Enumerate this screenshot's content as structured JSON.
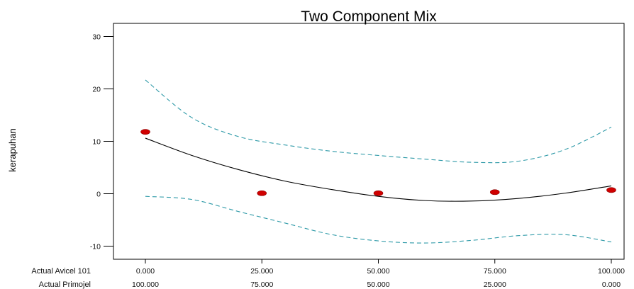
{
  "chart_data": {
    "type": "line",
    "title": "Two Component Mix",
    "ylabel": "kerapuhan",
    "x_axis_labels": {
      "primary": "Actual Avicel 101",
      "secondary": "Actual Primojel"
    },
    "x_ticks": [
      "0.000",
      "25.000",
      "50.000",
      "75.000",
      "100.000"
    ],
    "x_ticks_secondary": [
      "100.000",
      "75.000",
      "50.000",
      "25.000",
      "0.000"
    ],
    "y_ticks": [
      "-10",
      "0",
      "10",
      "20",
      "30"
    ],
    "xlim": [
      0,
      100
    ],
    "ylim": [
      -12.5,
      32.5
    ],
    "grid": false,
    "points": {
      "x": [
        0,
        25,
        50,
        75,
        100
      ],
      "y": [
        11.8,
        0.1,
        0.1,
        0.3,
        0.7
      ]
    },
    "series": [
      {
        "role": "fit",
        "x": [
          0,
          10,
          20,
          30,
          40,
          50,
          60,
          70,
          80,
          90,
          100
        ],
        "y": [
          10.6,
          7.3,
          4.6,
          2.4,
          0.8,
          -0.5,
          -1.3,
          -1.4,
          -0.9,
          0.1,
          1.5
        ]
      },
      {
        "role": "upper-ci",
        "x": [
          0,
          10,
          20,
          30,
          40,
          50,
          60,
          70,
          80,
          90,
          100
        ],
        "y": [
          21.7,
          14.5,
          10.9,
          9.3,
          8.1,
          7.3,
          6.6,
          6.0,
          6.2,
          8.4,
          12.7
        ]
      },
      {
        "role": "lower-ci",
        "x": [
          0,
          10,
          20,
          30,
          40,
          50,
          60,
          70,
          80,
          90,
          100
        ],
        "y": [
          -0.5,
          -1.1,
          -3.4,
          -5.6,
          -7.8,
          -9.0,
          -9.4,
          -8.9,
          -8.0,
          -7.8,
          -9.2
        ]
      }
    ],
    "colors": {
      "fit": "#000000",
      "ci": "#2f9aa8",
      "points": "#d00000",
      "axis": "#000000"
    }
  }
}
